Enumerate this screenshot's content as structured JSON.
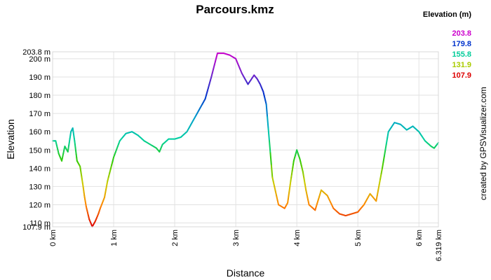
{
  "chart_data": {
    "type": "line",
    "title": "Parcours.kmz",
    "xlabel": "Distance",
    "ylabel": "Elevation",
    "credit": "created by GPSVisualizer.com",
    "xlim": [
      0,
      6.319
    ],
    "ylim": [
      107.9,
      203.8
    ],
    "x_ticks": [
      {
        "value": 0,
        "label": "0 km"
      },
      {
        "value": 1,
        "label": "1 km"
      },
      {
        "value": 2,
        "label": "2 km"
      },
      {
        "value": 3,
        "label": "3 km"
      },
      {
        "value": 4,
        "label": "4 km"
      },
      {
        "value": 5,
        "label": "5 km"
      },
      {
        "value": 6,
        "label": "6 km"
      },
      {
        "value": 6.319,
        "label": "6.319 km"
      }
    ],
    "y_ticks": [
      {
        "value": 107.9,
        "label": "107.9 m"
      },
      {
        "value": 110,
        "label": "110 m"
      },
      {
        "value": 120,
        "label": "120 m"
      },
      {
        "value": 130,
        "label": "130 m"
      },
      {
        "value": 140,
        "label": "140 m"
      },
      {
        "value": 150,
        "label": "150 m"
      },
      {
        "value": 160,
        "label": "160 m"
      },
      {
        "value": 170,
        "label": "170 m"
      },
      {
        "value": 180,
        "label": "180 m"
      },
      {
        "value": 190,
        "label": "190 m"
      },
      {
        "value": 200,
        "label": "200 m"
      },
      {
        "value": 203.8,
        "label": "203.8 m"
      }
    ],
    "grid": true,
    "legend": {
      "title": "Elevation (m)",
      "placement": "top-right",
      "entries": [
        {
          "label": "203.8",
          "color": "#cc00cc"
        },
        {
          "label": "179.8",
          "color": "#0033cc"
        },
        {
          "label": "155.8",
          "color": "#00cc99"
        },
        {
          "label": "131.9",
          "color": "#aacc00"
        },
        {
          "label": "107.9",
          "color": "#dd0000"
        }
      ]
    },
    "color_stops": [
      {
        "value": 107.9,
        "color": "#dd0000"
      },
      {
        "value": 119.9,
        "color": "#ff8800"
      },
      {
        "value": 131.9,
        "color": "#cccc00"
      },
      {
        "value": 143.8,
        "color": "#33cc00"
      },
      {
        "value": 155.8,
        "color": "#00d0a0"
      },
      {
        "value": 167.8,
        "color": "#00a0cc"
      },
      {
        "value": 179.8,
        "color": "#0033cc"
      },
      {
        "value": 191.8,
        "color": "#7722cc"
      },
      {
        "value": 203.8,
        "color": "#cc00cc"
      }
    ],
    "series": [
      {
        "x": [
          0,
          0.05,
          0.1,
          0.15,
          0.2,
          0.25,
          0.3,
          0.33,
          0.36,
          0.4,
          0.45,
          0.5,
          0.52,
          0.55,
          0.6,
          0.65,
          0.7,
          0.75,
          0.78,
          0.85,
          0.9,
          1.0,
          1.1,
          1.2,
          1.3,
          1.4,
          1.5,
          1.6,
          1.7,
          1.75,
          1.8,
          1.9,
          2.0,
          2.1,
          2.2,
          2.3,
          2.4,
          2.5,
          2.6,
          2.7,
          2.8,
          2.9,
          3.0,
          3.1,
          3.2,
          3.3,
          3.35,
          3.4,
          3.45,
          3.5,
          3.6,
          3.7,
          3.8,
          3.85,
          3.9,
          3.95,
          4.0,
          4.05,
          4.1,
          4.15,
          4.2,
          4.3,
          4.4,
          4.5,
          4.6,
          4.7,
          4.8,
          4.9,
          5.0,
          5.1,
          5.2,
          5.3,
          5.4,
          5.5,
          5.6,
          5.7,
          5.8,
          5.9,
          6.0,
          6.1,
          6.2,
          6.25,
          6.319
        ],
        "y": [
          155,
          155,
          148,
          144,
          152,
          149,
          160,
          162,
          155,
          144,
          141,
          130,
          125,
          119,
          112,
          108,
          111,
          115,
          118,
          124,
          133,
          146,
          155,
          159,
          160,
          158,
          155,
          153,
          151,
          149,
          153,
          156,
          156,
          157,
          160,
          166,
          172,
          178,
          190,
          203,
          203,
          202,
          200,
          192,
          186,
          191,
          189,
          186,
          182,
          175,
          135,
          120,
          118,
          121,
          133,
          144,
          150,
          145,
          138,
          128,
          120,
          117,
          128,
          125,
          118,
          115,
          114,
          115,
          116,
          120,
          126,
          122,
          140,
          160,
          165,
          164,
          161,
          163,
          160,
          155,
          152,
          151,
          154
        ],
        "line_width": 2
      }
    ]
  }
}
